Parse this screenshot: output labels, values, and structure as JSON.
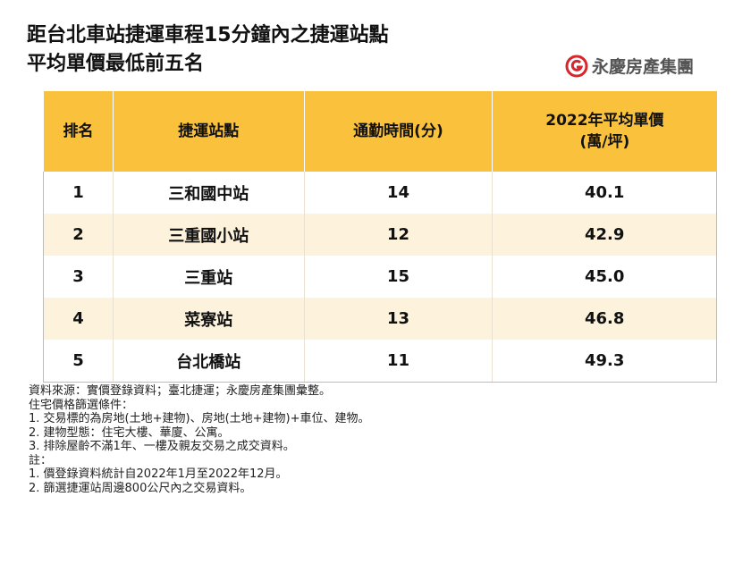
{
  "header": {
    "title": [
      "距台北車站捷運車程15分鐘內之捷運站點",
      "平均單價最低前五名"
    ],
    "logo": "永慶房產集團"
  },
  "table": {
    "columns": [
      "排名",
      "捷運站點",
      "通勤時間(分)",
      [
        "2022年平均單價",
        "(萬/坪)"
      ]
    ],
    "rows": [
      [
        "1",
        "三和國中站",
        "14",
        "40.1"
      ],
      [
        "2",
        "三重國小站",
        "12",
        "42.9"
      ],
      [
        "3",
        "三重站",
        "15",
        "45.0"
      ],
      [
        "4",
        "菜寮站",
        "13",
        "46.8"
      ],
      [
        "5",
        "台北橋站",
        "11",
        "49.3"
      ]
    ]
  },
  "notes": [
    "資料來源：實價登錄資料；臺北捷運；永慶房產集團彙整。",
    "住宅價格篩選條件：",
    "1.  交易標的為房地(土地+建物)、房地(土地+建物)+車位、建物。",
    "2.  建物型態：住宅大樓、華廈、公寓。",
    "3.  排除屋齡不滿1年、一樓及親友交易之成交資料。",
    "註：",
    "1.  價登錄資料統計自2022年1月至2022年12月。",
    "2.  篩選捷運站周邊800公尺內之交易資料。"
  ]
}
